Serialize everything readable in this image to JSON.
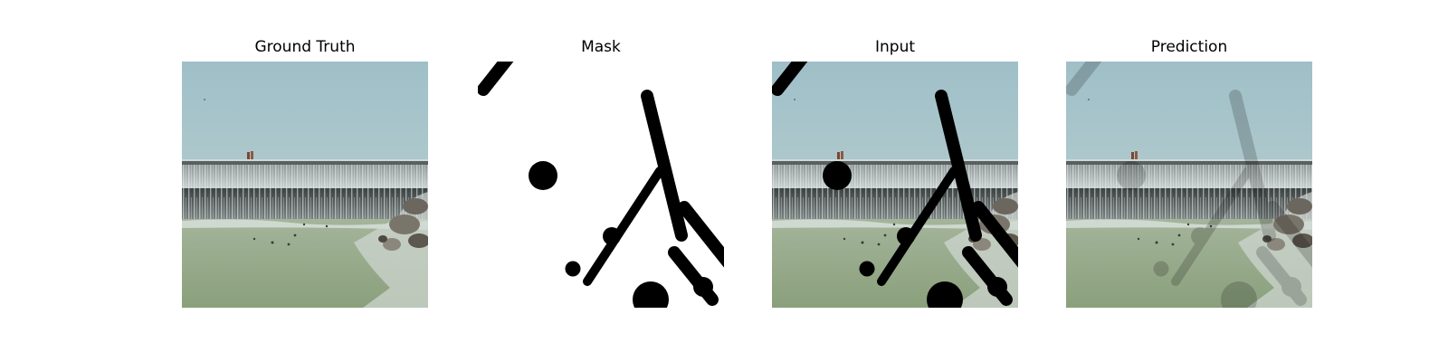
{
  "figure": {
    "panels": [
      {
        "title": "Ground Truth",
        "kind": "scene"
      },
      {
        "title": "Mask",
        "kind": "mask"
      },
      {
        "title": "Input",
        "kind": "masked-scene"
      },
      {
        "title": "Prediction",
        "kind": "scene"
      }
    ]
  },
  "colors": {
    "sky": "#a5c5cc",
    "water": "#98aa88",
    "falls": "#606666",
    "mask": "#000000"
  }
}
